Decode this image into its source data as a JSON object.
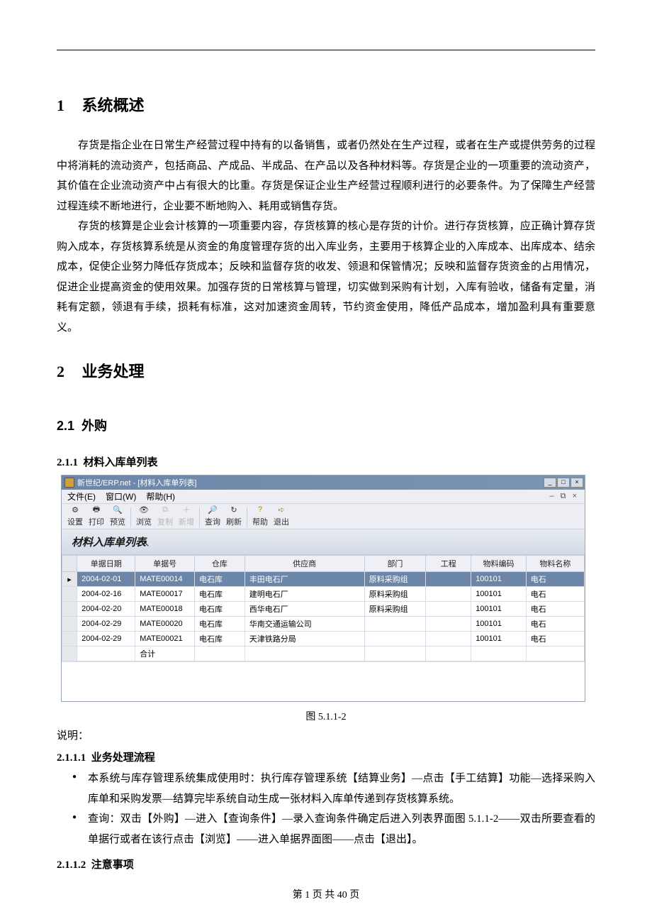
{
  "section1": {
    "num": "1",
    "title": "系统概述",
    "para1": "存货是指企业在日常生产经营过程中持有的以备销售，或者仍然处在生产过程，或者在生产或提供劳务的过程中将消耗的流动资产，包括商品、产成品、半成品、在产品以及各种材料等。存货是企业的一项重要的流动资产，其价值在企业流动资产中占有很大的比重。存货是保证企业生产经营过程顺利进行的必要条件。为了保障生产经营过程连续不断地进行，企业要不断地购入、耗用或销售存货。",
    "para2": "存货的核算是企业会计核算的一项重要内容，存货核算的核心是存货的计价。进行存货核算，应正确计算存货购入成本，存货核算系统是从资金的角度管理存货的出入库业务，主要用于核算企业的入库成本、出库成本、结余成本，促使企业努力降低存货成本；反映和监督存货的收发、领退和保管情况；反映和监督存货资金的占用情况，促进企业提高资金的使用效果。加强存货的日常核算与管理，切实做到采购有计划，入库有验收，储备有定量，消耗有定额，领退有手续，损耗有标准，这对加速资金周转，节约资金使用，降低产品成本，增加盈利具有重要意义。"
  },
  "section2": {
    "num": "2",
    "title": "业务处理"
  },
  "section21": {
    "num": "2.1",
    "title": "外购"
  },
  "section211": {
    "num": "2.1.1",
    "title": "材料入库单列表"
  },
  "app": {
    "title": "新世纪/ERP.net - [材料入库单列表]",
    "menus": {
      "file": "文件(E)",
      "window": "窗口(W)",
      "help": "帮助(H)"
    },
    "toolbar": {
      "btn_set": "设置",
      "btn_print": "打印",
      "btn_preview": "预览",
      "btn_browse": "浏览",
      "btn_copy": "复制",
      "btn_add": "新增",
      "btn_query": "查询",
      "btn_refresh": "刷新",
      "btn_help": "帮助",
      "btn_exit": "退出"
    },
    "band_title": "材料入库单列表",
    "grid": {
      "columns": [
        "单据日期",
        "单据号",
        "仓库",
        "供应商",
        "部门",
        "工程",
        "物料编码",
        "物料名称"
      ],
      "col_widths": [
        "72px",
        "72px",
        "62px",
        "148px",
        "76px",
        "56px",
        "68px",
        "72px"
      ],
      "rows": [
        {
          "date": "2004-02-01",
          "no": "MATE00014",
          "wh": "电石库",
          "vendor": "丰田电石厂",
          "dept": "原料采购组",
          "proj": "",
          "code": "100101",
          "name": "电石",
          "selected": true
        },
        {
          "date": "2004-02-16",
          "no": "MATE00017",
          "wh": "电石库",
          "vendor": "建明电石厂",
          "dept": "原料采购组",
          "proj": "",
          "code": "100101",
          "name": "电石"
        },
        {
          "date": "2004-02-20",
          "no": "MATE00018",
          "wh": "电石库",
          "vendor": "西华电石厂",
          "dept": "原料采购组",
          "proj": "",
          "code": "100101",
          "name": "电石"
        },
        {
          "date": "2004-02-29",
          "no": "MATE00020",
          "wh": "电石库",
          "vendor": "华南交通运输公司",
          "dept": "",
          "proj": "",
          "code": "100101",
          "name": "电石"
        },
        {
          "date": "2004-02-29",
          "no": "MATE00021",
          "wh": "电石库",
          "vendor": "天津铁路分局",
          "dept": "",
          "proj": "",
          "code": "100101",
          "name": "电石"
        }
      ],
      "total_label": "合计"
    }
  },
  "figure_caption": "图 5.1.1-2",
  "note_label": "说明：",
  "section2111": {
    "num": "2.1.1.1",
    "title": "业务处理流程"
  },
  "bullets": {
    "b1": "本系统与库存管理系统集成使用时：执行库存管理系统【结算业务】—点击【手工结算】功能—选择采购入库单和采购发票—结算完毕系统自动生成一张材料入库单传递到存货核算系统。",
    "b2": "查询：双击【外购】—进入【查询条件】—录入查询条件确定后进入列表界面图 5.1.1-2——双击所要查看的单据行或者在该行点击【浏览】——进入单据界面图——点击【退出】。"
  },
  "section2112": {
    "num": "2.1.1.2",
    "title": "注意事项"
  },
  "footer": {
    "page_current": "1",
    "page_total": "40",
    "text_prefix": "第 ",
    "text_mid": " 页 共 ",
    "text_suffix": " 页"
  },
  "colors": {
    "titlebar_start": "#6b86a8",
    "titlebar_end": "#7a94b4",
    "header_bg": "#eef0f6",
    "border": "#c8ccd6",
    "sel_bg": "#6b86a8"
  }
}
